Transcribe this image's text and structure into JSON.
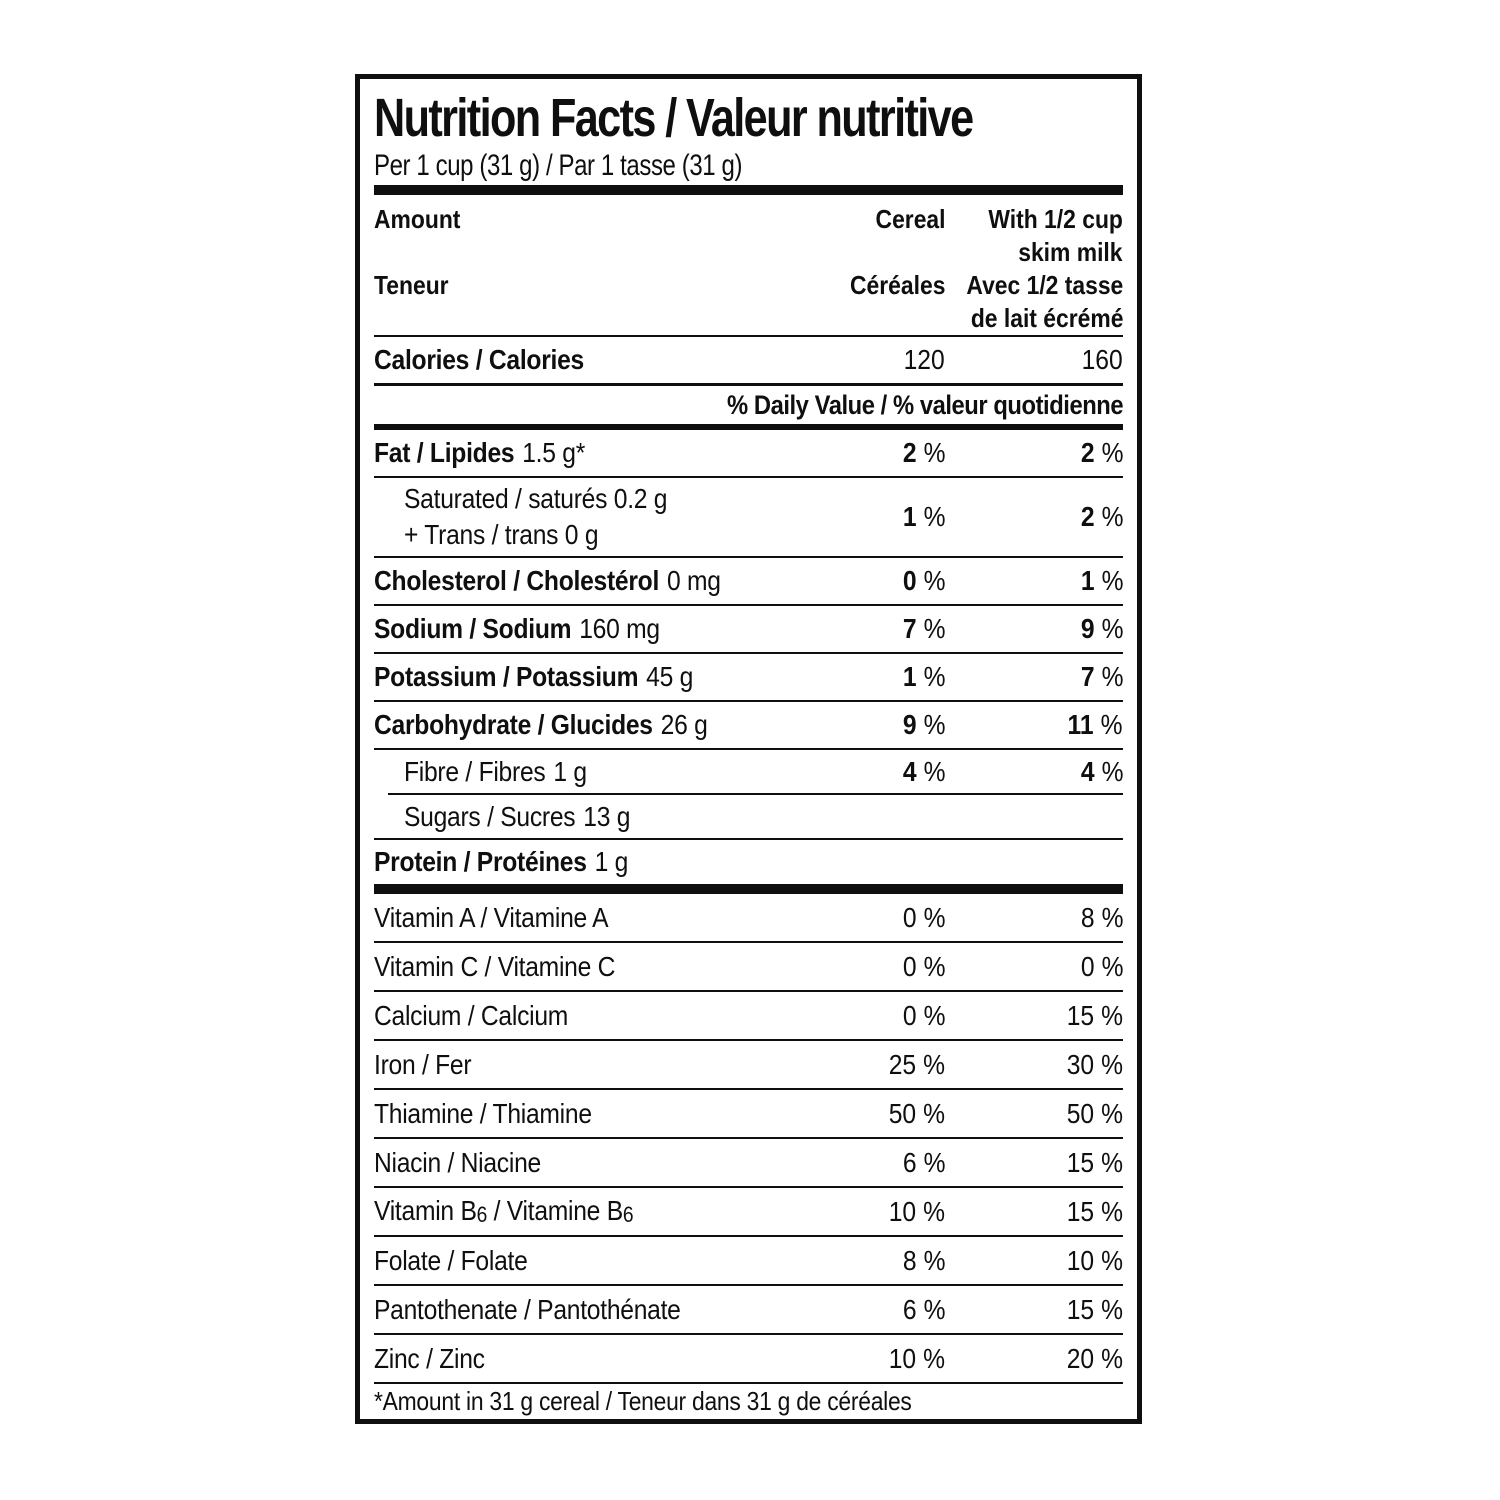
{
  "theme": {
    "ink": "#0f0f0f",
    "paper": "#ffffff"
  },
  "strings": {
    "percent": "%"
  },
  "label": {
    "title": "Nutrition Facts / Valeur nutritive",
    "serving": "Per 1 cup (31 g) / Par 1 tasse (31 g)",
    "header": {
      "lines": [
        {
          "left": "Amount",
          "cereal": "Cereal",
          "milk": "With 1/2 cup"
        },
        {
          "milk": "skim milk"
        },
        {
          "left": "Teneur",
          "cereal": "Céréales",
          "milk": "Avec 1/2 tasse"
        },
        {
          "milk": "de lait écrémé"
        }
      ]
    },
    "calories": {
      "label": "Calories / Calories",
      "cereal": "120",
      "milk": "160"
    },
    "daily_value_header": "% Daily Value / % valeur quotidienne",
    "nutrients": [
      {
        "name": "Fat / Lipides",
        "amount": "1.5 g*",
        "cereal": "2",
        "milk": "2"
      },
      {
        "line1": "Saturated / saturés 0.2 g",
        "line2": "+ Trans / trans 0 g",
        "cereal": "1",
        "milk": "2"
      },
      {
        "name": "Cholesterol / Cholestérol",
        "amount": "0 mg",
        "cereal": "0",
        "milk": "1"
      },
      {
        "name": "Sodium / Sodium",
        "amount": "160 mg",
        "cereal": "7",
        "milk": "9"
      },
      {
        "name": "Potassium / Potassium",
        "amount": "45 g",
        "cereal": "1",
        "milk": "7"
      },
      {
        "name": "Carbohydrate / Glucides",
        "amount": "26 g",
        "cereal": "9",
        "milk": "11"
      },
      {
        "name": "Fibre / Fibres",
        "amount": "1 g",
        "cereal": "4",
        "milk": "4"
      },
      {
        "name": "Sugars / Sucres",
        "amount": "13 g"
      },
      {
        "name": "Protein / Protéines",
        "amount": "1 g"
      }
    ],
    "micronutrients": [
      {
        "name": "Vitamin A / Vitamine A",
        "cereal": "0",
        "milk": "8"
      },
      {
        "name": "Vitamin C / Vitamine C",
        "cereal": "0",
        "milk": "0"
      },
      {
        "name": "Calcium / Calcium",
        "cereal": "0",
        "milk": "15"
      },
      {
        "name": "Iron / Fer",
        "cereal": "25",
        "milk": "30"
      },
      {
        "name": "Thiamine / Thiamine",
        "cereal": "50",
        "milk": "50"
      },
      {
        "name": "Niacin / Niacine",
        "cereal": "6",
        "milk": "15"
      },
      {
        "name_pre": "Vitamin B",
        "sub1": "6",
        "name_mid": " / Vitamine B",
        "sub2": "6",
        "cereal": "10",
        "milk": "15"
      },
      {
        "name": "Folate / Folate",
        "cereal": "8",
        "milk": "10"
      },
      {
        "name": "Pantothenate / Pantothénate",
        "cereal": "6",
        "milk": "15"
      },
      {
        "name": "Zinc / Zinc",
        "cereal": "10",
        "milk": "20"
      }
    ],
    "footnote": "*Amount in 31 g cereal / Teneur dans 31 g de céréales"
  }
}
